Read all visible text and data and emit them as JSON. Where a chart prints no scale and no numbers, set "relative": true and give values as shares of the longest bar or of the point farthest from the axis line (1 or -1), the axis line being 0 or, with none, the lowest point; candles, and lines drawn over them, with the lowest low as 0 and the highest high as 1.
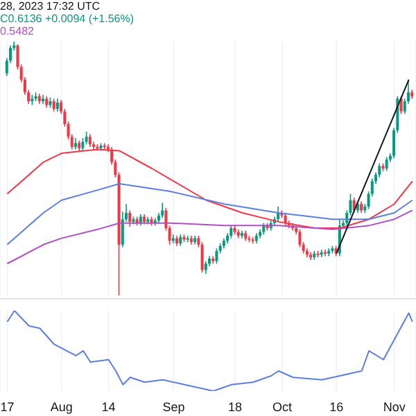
{
  "chart_data": [
    {
      "type": "candlestick",
      "relative": true,
      "annotations": [
        "28, 2023 17:32 UTC",
        "C0.6136 +0.0094 (+1.56%)",
        "0.5482"
      ],
      "x": [
        "2023-07-17",
        "2023-07-18",
        "2023-07-19",
        "2023-07-20",
        "2023-07-21",
        "2023-07-22",
        "2023-07-23",
        "2023-07-24",
        "2023-07-25",
        "2023-07-26",
        "2023-07-27",
        "2023-07-28",
        "2023-07-29",
        "2023-07-30",
        "2023-07-31",
        "2023-08-01",
        "2023-08-02",
        "2023-08-03",
        "2023-08-04",
        "2023-08-05",
        "2023-08-06",
        "2023-08-07",
        "2023-08-08",
        "2023-08-09",
        "2023-08-10",
        "2023-08-11",
        "2023-08-12",
        "2023-08-13",
        "2023-08-14",
        "2023-08-15",
        "2023-08-16",
        "2023-08-17",
        "2023-08-18",
        "2023-08-19",
        "2023-08-20",
        "2023-08-21",
        "2023-08-22",
        "2023-08-23",
        "2023-08-24",
        "2023-08-25",
        "2023-08-26",
        "2023-08-27",
        "2023-08-28",
        "2023-08-29",
        "2023-08-30",
        "2023-08-31",
        "2023-09-01",
        "2023-09-02",
        "2023-09-03",
        "2023-09-04",
        "2023-09-05",
        "2023-09-06",
        "2023-09-07",
        "2023-09-08",
        "2023-09-09",
        "2023-09-10",
        "2023-09-11",
        "2023-09-12",
        "2023-09-13",
        "2023-09-14",
        "2023-09-15",
        "2023-09-16",
        "2023-09-17",
        "2023-09-18",
        "2023-09-19",
        "2023-09-20",
        "2023-09-21",
        "2023-09-22",
        "2023-09-23",
        "2023-09-24",
        "2023-09-25",
        "2023-09-26",
        "2023-09-27",
        "2023-09-28",
        "2023-09-29",
        "2023-09-30",
        "2023-10-01",
        "2023-10-02",
        "2023-10-03",
        "2023-10-04",
        "2023-10-05",
        "2023-10-06",
        "2023-10-07",
        "2023-10-08",
        "2023-10-09",
        "2023-10-10",
        "2023-10-11",
        "2023-10-12",
        "2023-10-13",
        "2023-10-14",
        "2023-10-15",
        "2023-10-16",
        "2023-10-17",
        "2023-10-18",
        "2023-10-19",
        "2023-10-20",
        "2023-10-21",
        "2023-10-22",
        "2023-10-23",
        "2023-10-24",
        "2023-10-25",
        "2023-10-26",
        "2023-10-27",
        "2023-10-28",
        "2023-10-29",
        "2023-10-30",
        "2023-10-31",
        "2023-11-01",
        "2023-11-02",
        "2023-11-03",
        "2023-11-04",
        "2023-11-05",
        "2023-11-06"
      ],
      "ohlc": [
        [
          0.875,
          0.935,
          0.865,
          0.925
        ],
        [
          0.925,
          0.985,
          0.915,
          0.975
        ],
        [
          0.975,
          1,
          0.965,
          0.985
        ],
        [
          0.985,
          0.99,
          0.89,
          0.9
        ],
        [
          0.9,
          0.91,
          0.84,
          0.85
        ],
        [
          0.85,
          0.86,
          0.79,
          0.8
        ],
        [
          0.8,
          0.81,
          0.755,
          0.765
        ],
        [
          0.765,
          0.79,
          0.75,
          0.775
        ],
        [
          0.775,
          0.8,
          0.765,
          0.785
        ],
        [
          0.785,
          0.795,
          0.755,
          0.765
        ],
        [
          0.765,
          0.79,
          0.755,
          0.775
        ],
        [
          0.775,
          0.785,
          0.74,
          0.75
        ],
        [
          0.75,
          0.78,
          0.74,
          0.765
        ],
        [
          0.765,
          0.775,
          0.725,
          0.735
        ],
        [
          0.735,
          0.775,
          0.725,
          0.76
        ],
        [
          0.76,
          0.77,
          0.715,
          0.725
        ],
        [
          0.725,
          0.735,
          0.665,
          0.675
        ],
        [
          0.675,
          0.685,
          0.615,
          0.625
        ],
        [
          0.625,
          0.635,
          0.575,
          0.585
        ],
        [
          0.585,
          0.62,
          0.575,
          0.6
        ],
        [
          0.6,
          0.61,
          0.57,
          0.58
        ],
        [
          0.58,
          0.62,
          0.57,
          0.605
        ],
        [
          0.605,
          0.645,
          0.595,
          0.625
        ],
        [
          0.625,
          0.635,
          0.585,
          0.595
        ],
        [
          0.595,
          0.605,
          0.575,
          0.585
        ],
        [
          0.585,
          0.595,
          0.57,
          0.58
        ],
        [
          0.58,
          0.6,
          0.57,
          0.59
        ],
        [
          0.59,
          0.6,
          0.575,
          0.585
        ],
        [
          0.585,
          0.595,
          0.565,
          0.575
        ],
        [
          0.575,
          0.585,
          0.515,
          0.525
        ],
        [
          0.525,
          0.535,
          0.465,
          0.475
        ],
        [
          0.475,
          0.485,
          0,
          0.2
        ],
        [
          0.2,
          0.33,
          0.19,
          0.3
        ],
        [
          0.3,
          0.36,
          0.29,
          0.325
        ],
        [
          0.325,
          0.335,
          0.27,
          0.29
        ],
        [
          0.29,
          0.31,
          0.28,
          0.3
        ],
        [
          0.3,
          0.31,
          0.275,
          0.285
        ],
        [
          0.285,
          0.32,
          0.275,
          0.31
        ],
        [
          0.31,
          0.32,
          0.28,
          0.29
        ],
        [
          0.29,
          0.31,
          0.28,
          0.3
        ],
        [
          0.3,
          0.31,
          0.275,
          0.285
        ],
        [
          0.285,
          0.305,
          0.275,
          0.295
        ],
        [
          0.295,
          0.325,
          0.285,
          0.315
        ],
        [
          0.315,
          0.365,
          0.305,
          0.335
        ],
        [
          0.335,
          0.345,
          0.255,
          0.265
        ],
        [
          0.265,
          0.275,
          0.2,
          0.215
        ],
        [
          0.215,
          0.24,
          0.205,
          0.225
        ],
        [
          0.225,
          0.235,
          0.195,
          0.205
        ],
        [
          0.205,
          0.24,
          0.195,
          0.23
        ],
        [
          0.23,
          0.24,
          0.21,
          0.22
        ],
        [
          0.22,
          0.235,
          0.21,
          0.225
        ],
        [
          0.225,
          0.235,
          0.2,
          0.21
        ],
        [
          0.21,
          0.235,
          0.2,
          0.225
        ],
        [
          0.225,
          0.235,
          0.19,
          0.2
        ],
        [
          0.2,
          0.21,
          0.09,
          0.1
        ],
        [
          0.1,
          0.135,
          0.085,
          0.125
        ],
        [
          0.125,
          0.155,
          0.115,
          0.145
        ],
        [
          0.145,
          0.155,
          0.125,
          0.135
        ],
        [
          0.135,
          0.185,
          0.125,
          0.175
        ],
        [
          0.175,
          0.205,
          0.165,
          0.195
        ],
        [
          0.195,
          0.225,
          0.185,
          0.215
        ],
        [
          0.215,
          0.245,
          0.205,
          0.235
        ],
        [
          0.235,
          0.275,
          0.225,
          0.265
        ],
        [
          0.265,
          0.275,
          0.24,
          0.25
        ],
        [
          0.25,
          0.26,
          0.225,
          0.235
        ],
        [
          0.235,
          0.255,
          0.225,
          0.245
        ],
        [
          0.245,
          0.255,
          0.215,
          0.225
        ],
        [
          0.225,
          0.235,
          0.21,
          0.22
        ],
        [
          0.22,
          0.23,
          0.205,
          0.215
        ],
        [
          0.215,
          0.245,
          0.205,
          0.235
        ],
        [
          0.235,
          0.26,
          0.225,
          0.25
        ],
        [
          0.25,
          0.285,
          0.24,
          0.275
        ],
        [
          0.275,
          0.285,
          0.255,
          0.265
        ],
        [
          0.265,
          0.295,
          0.255,
          0.285
        ],
        [
          0.285,
          0.31,
          0.275,
          0.3
        ],
        [
          0.3,
          0.35,
          0.29,
          0.325
        ],
        [
          0.325,
          0.335,
          0.305,
          0.315
        ],
        [
          0.315,
          0.325,
          0.275,
          0.285
        ],
        [
          0.285,
          0.295,
          0.265,
          0.275
        ],
        [
          0.275,
          0.285,
          0.255,
          0.265
        ],
        [
          0.265,
          0.275,
          0.24,
          0.25
        ],
        [
          0.25,
          0.26,
          0.19,
          0.2
        ],
        [
          0.2,
          0.21,
          0.165,
          0.175
        ],
        [
          0.175,
          0.185,
          0.15,
          0.16
        ],
        [
          0.16,
          0.17,
          0.14,
          0.15
        ],
        [
          0.15,
          0.175,
          0.14,
          0.165
        ],
        [
          0.165,
          0.175,
          0.15,
          0.16
        ],
        [
          0.16,
          0.18,
          0.15,
          0.17
        ],
        [
          0.17,
          0.18,
          0.155,
          0.165
        ],
        [
          0.165,
          0.185,
          0.155,
          0.175
        ],
        [
          0.175,
          0.195,
          0.165,
          0.185
        ],
        [
          0.185,
          0.195,
          0.155,
          0.165
        ],
        [
          0.165,
          0.3,
          0.155,
          0.275
        ],
        [
          0.275,
          0.295,
          0.265,
          0.285
        ],
        [
          0.285,
          0.335,
          0.275,
          0.325
        ],
        [
          0.325,
          0.4,
          0.315,
          0.375
        ],
        [
          0.375,
          0.385,
          0.325,
          0.335
        ],
        [
          0.335,
          0.37,
          0.325,
          0.36
        ],
        [
          0.36,
          0.37,
          0.325,
          0.335
        ],
        [
          0.335,
          0.36,
          0.325,
          0.35
        ],
        [
          0.35,
          0.41,
          0.34,
          0.4
        ],
        [
          0.4,
          0.46,
          0.39,
          0.45
        ],
        [
          0.45,
          0.485,
          0.44,
          0.475
        ],
        [
          0.475,
          0.52,
          0.465,
          0.51
        ],
        [
          0.51,
          0.52,
          0.49,
          0.5
        ],
        [
          0.5,
          0.545,
          0.49,
          0.535
        ],
        [
          0.535,
          0.56,
          0.525,
          0.55
        ],
        [
          0.55,
          0.66,
          0.54,
          0.65
        ],
        [
          0.65,
          0.785,
          0.64,
          0.775
        ],
        [
          0.775,
          0.785,
          0.715,
          0.725
        ],
        [
          0.725,
          0.775,
          0.715,
          0.765
        ],
        [
          0.765,
          0.85,
          0.755,
          0.8
        ],
        [
          0.8,
          0.81,
          0.775,
          0.785
        ]
      ],
      "series": [
        {
          "type": "line",
          "color": "#f23645",
          "x": [
            "2023-07-17",
            "2023-07-27",
            "2023-08-01",
            "2023-08-11",
            "2023-08-17",
            "2023-08-26",
            "2023-09-10",
            "2023-09-20",
            "2023-09-30",
            "2023-10-10",
            "2023-10-17",
            "2023-10-25",
            "2023-11-01",
            "2023-11-06"
          ],
          "values": [
            0.4,
            0.525,
            0.56,
            0.575,
            0.57,
            0.5,
            0.375,
            0.325,
            0.29,
            0.265,
            0.265,
            0.3,
            0.36,
            0.45
          ]
        },
        {
          "type": "line",
          "color": "#5b7fe0",
          "x": [
            "2023-07-17",
            "2023-07-27",
            "2023-08-01",
            "2023-08-11",
            "2023-08-17",
            "2023-08-31",
            "2023-09-15",
            "2023-09-30",
            "2023-10-15",
            "2023-10-25",
            "2023-11-01",
            "2023-11-06"
          ],
          "values": [
            0.2,
            0.325,
            0.375,
            0.415,
            0.44,
            0.41,
            0.36,
            0.325,
            0.3,
            0.3,
            0.325,
            0.375
          ]
        },
        {
          "type": "line",
          "color": "#b04fc4",
          "x": [
            "2023-07-17",
            "2023-07-27",
            "2023-08-01",
            "2023-08-11",
            "2023-08-17",
            "2023-08-31",
            "2023-09-15",
            "2023-09-30",
            "2023-10-15",
            "2023-10-25",
            "2023-11-01",
            "2023-11-06"
          ],
          "values": [
            0.125,
            0.2,
            0.225,
            0.26,
            0.285,
            0.285,
            0.275,
            0.275,
            0.26,
            0.275,
            0.3,
            0.335
          ]
        },
        {
          "type": "line",
          "color": "#131722",
          "x": [
            "2023-10-16",
            "2023-11-05"
          ],
          "values": [
            0.165,
            0.85
          ]
        }
      ],
      "xlim": [
        "2023-07-15",
        "2023-11-07"
      ],
      "xticks": [
        "2023-07-17",
        "2023-08-01",
        "2023-08-14",
        "2023-09-01",
        "2023-09-18",
        "2023-10-01",
        "2023-10-16",
        "2023-11-01"
      ],
      "tick_labels": false,
      "grid": "x"
    },
    {
      "type": "line",
      "relative": true,
      "x": [
        "2023-07-17",
        "2023-07-19",
        "2023-07-23",
        "2023-07-26",
        "2023-07-30",
        "2023-08-05",
        "2023-08-07",
        "2023-08-09",
        "2023-08-14",
        "2023-08-16",
        "2023-08-18",
        "2023-08-20",
        "2023-08-24",
        "2023-08-29",
        "2023-09-04",
        "2023-09-12",
        "2023-09-17",
        "2023-09-23",
        "2023-09-28",
        "2023-09-30",
        "2023-10-04",
        "2023-10-12",
        "2023-10-17",
        "2023-10-23",
        "2023-10-25",
        "2023-10-29",
        "2023-11-01",
        "2023-11-05",
        "2023-11-06"
      ],
      "series": [
        {
          "color": "#5b7fe0",
          "values": [
            0.86,
            1,
            0.81,
            0.78,
            0.58,
            0.44,
            0.5,
            0.36,
            0.39,
            0.25,
            0.08,
            0.17,
            0.11,
            0.14,
            0.08,
            0,
            0.08,
            0.11,
            0.19,
            0.25,
            0.17,
            0.14,
            0.19,
            0.25,
            0.5,
            0.39,
            0.64,
            0.97,
            0.86
          ]
        }
      ],
      "xlim": [
        "2023-07-15",
        "2023-11-07"
      ],
      "xticks": [
        {
          "value": "2023-07-17",
          "label": "17"
        },
        {
          "value": "2023-08-01",
          "label": "Aug"
        },
        {
          "value": "2023-08-14",
          "label": "14"
        },
        {
          "value": "2023-09-01",
          "label": "Sep"
        },
        {
          "value": "2023-09-18",
          "label": "18"
        },
        {
          "value": "2023-10-01",
          "label": "Oct"
        },
        {
          "value": "2023-10-16",
          "label": "16"
        },
        {
          "value": "2023-11-01",
          "label": "Nov"
        }
      ],
      "tick_labels": "x",
      "grid": "x"
    }
  ]
}
